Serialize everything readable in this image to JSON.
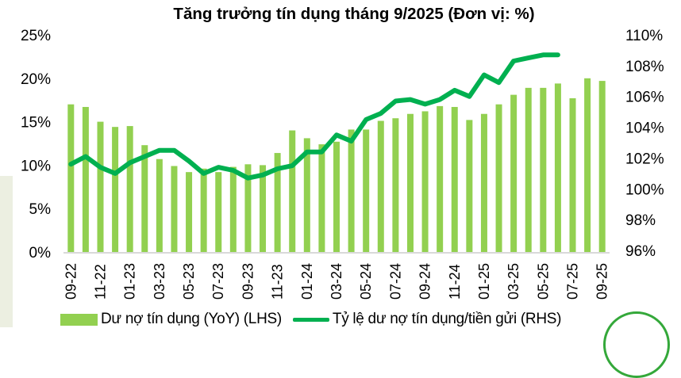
{
  "title": "Tăng trưởng tín dụng tháng 9/2025 (Đơn vị: %)",
  "colors": {
    "bar": "#92d050",
    "line": "#00b050",
    "axis": "#d9d9d9",
    "text": "#000000"
  },
  "legend": {
    "bar_label": "Dư nợ tín dụng (YoY) (LHS)",
    "line_label": "Tỷ lệ dư nợ tín dụng/tiền gửi (RHS)"
  },
  "chart_data": {
    "type": "bar+line",
    "title": "Tăng trưởng tín dụng tháng 9/2025 (Đơn vị: %)",
    "xlabel": "",
    "ylabel_left": "",
    "ylabel_right": "",
    "left_axis": {
      "ticks": [
        "0%",
        "5%",
        "10%",
        "15%",
        "20%",
        "25%"
      ],
      "ylim": [
        0,
        25
      ]
    },
    "right_axis": {
      "ticks": [
        "96%",
        "98%",
        "100%",
        "102%",
        "104%",
        "106%",
        "108%",
        "110%"
      ],
      "ylim": [
        96,
        110
      ]
    },
    "x_tick_labels": [
      "09-22",
      "11-22",
      "01-23",
      "03-23",
      "05-23",
      "07-23",
      "09-23",
      "11-23",
      "01-24",
      "03-24",
      "05-24",
      "07-24",
      "09-24",
      "11-24",
      "01-25",
      "03-25",
      "05-25",
      "07-25",
      "09-25"
    ],
    "categories": [
      "09-22",
      "10-22",
      "11-22",
      "12-22",
      "01-23",
      "02-23",
      "03-23",
      "04-23",
      "05-23",
      "06-23",
      "07-23",
      "08-23",
      "09-23",
      "10-23",
      "11-23",
      "12-23",
      "01-24",
      "02-24",
      "03-24",
      "04-24",
      "05-24",
      "06-24",
      "07-24",
      "08-24",
      "09-24",
      "10-24",
      "11-24",
      "12-24",
      "01-25",
      "02-25",
      "03-25",
      "04-25",
      "05-25",
      "06-25",
      "07-25",
      "08-25",
      "09-25"
    ],
    "series": [
      {
        "name": "Dư nợ tín dụng (YoY) (LHS)",
        "type": "bar",
        "axis": "left",
        "values": [
          17.0,
          16.7,
          15.0,
          14.4,
          14.5,
          12.3,
          10.7,
          9.9,
          9.2,
          9.6,
          9.2,
          9.8,
          10.1,
          10.0,
          11.4,
          14.0,
          13.1,
          12.4,
          12.7,
          14.1,
          14.1,
          15.1,
          15.4,
          15.9,
          16.2,
          16.8,
          16.7,
          15.2,
          15.9,
          17.0,
          18.1,
          18.9,
          18.9,
          19.4,
          17.7,
          20.0,
          19.7
        ]
      },
      {
        "name": "Tỷ lệ dư nợ tín dụng/tiền gửi (RHS)",
        "type": "line",
        "axis": "right",
        "values": [
          101.6,
          102.1,
          101.4,
          101.0,
          101.7,
          102.1,
          102.5,
          102.5,
          101.8,
          101.0,
          101.4,
          101.2,
          100.7,
          100.9,
          101.3,
          101.5,
          102.4,
          102.4,
          103.5,
          103.1,
          104.5,
          104.9,
          105.7,
          105.8,
          105.5,
          105.8,
          106.4,
          106.0,
          107.4,
          106.9,
          108.3,
          108.5,
          108.7,
          108.7,
          null,
          null,
          null
        ]
      }
    ],
    "grid": false,
    "legend_position": "bottom"
  }
}
